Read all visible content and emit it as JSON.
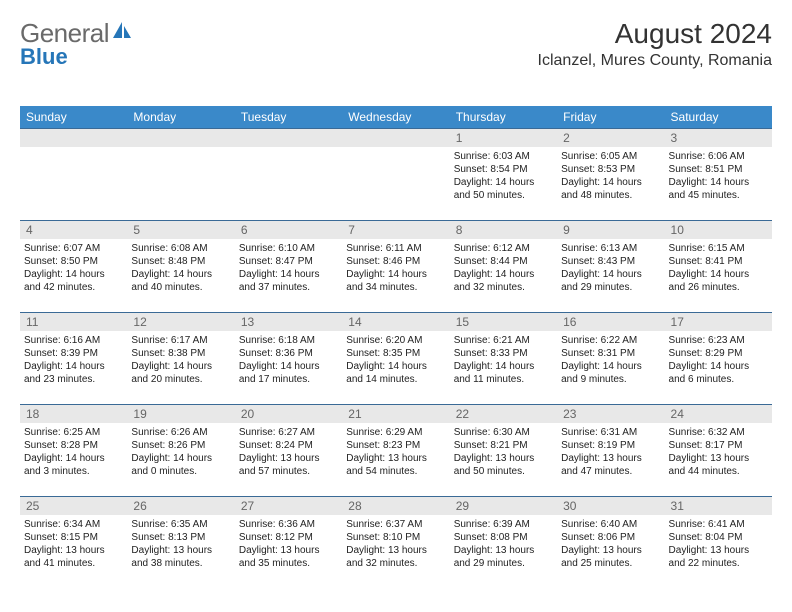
{
  "brand": {
    "general": "General",
    "blue": "Blue"
  },
  "title": "August 2024",
  "location": "Iclanzel, Mures County, Romania",
  "colors": {
    "header_blue": "#3a89c9",
    "border_blue": "#3a6a96",
    "daynum_bg": "#e8e8e8",
    "logo_blue": "#2676b8",
    "logo_gray": "#6a6a6a"
  },
  "day_headers": [
    "Sunday",
    "Monday",
    "Tuesday",
    "Wednesday",
    "Thursday",
    "Friday",
    "Saturday"
  ],
  "weeks": [
    [
      null,
      null,
      null,
      null,
      {
        "n": "1",
        "sr": "6:03 AM",
        "ss": "8:54 PM",
        "dl": "14 hours and 50 minutes."
      },
      {
        "n": "2",
        "sr": "6:05 AM",
        "ss": "8:53 PM",
        "dl": "14 hours and 48 minutes."
      },
      {
        "n": "3",
        "sr": "6:06 AM",
        "ss": "8:51 PM",
        "dl": "14 hours and 45 minutes."
      }
    ],
    [
      {
        "n": "4",
        "sr": "6:07 AM",
        "ss": "8:50 PM",
        "dl": "14 hours and 42 minutes."
      },
      {
        "n": "5",
        "sr": "6:08 AM",
        "ss": "8:48 PM",
        "dl": "14 hours and 40 minutes."
      },
      {
        "n": "6",
        "sr": "6:10 AM",
        "ss": "8:47 PM",
        "dl": "14 hours and 37 minutes."
      },
      {
        "n": "7",
        "sr": "6:11 AM",
        "ss": "8:46 PM",
        "dl": "14 hours and 34 minutes."
      },
      {
        "n": "8",
        "sr": "6:12 AM",
        "ss": "8:44 PM",
        "dl": "14 hours and 32 minutes."
      },
      {
        "n": "9",
        "sr": "6:13 AM",
        "ss": "8:43 PM",
        "dl": "14 hours and 29 minutes."
      },
      {
        "n": "10",
        "sr": "6:15 AM",
        "ss": "8:41 PM",
        "dl": "14 hours and 26 minutes."
      }
    ],
    [
      {
        "n": "11",
        "sr": "6:16 AM",
        "ss": "8:39 PM",
        "dl": "14 hours and 23 minutes."
      },
      {
        "n": "12",
        "sr": "6:17 AM",
        "ss": "8:38 PM",
        "dl": "14 hours and 20 minutes."
      },
      {
        "n": "13",
        "sr": "6:18 AM",
        "ss": "8:36 PM",
        "dl": "14 hours and 17 minutes."
      },
      {
        "n": "14",
        "sr": "6:20 AM",
        "ss": "8:35 PM",
        "dl": "14 hours and 14 minutes."
      },
      {
        "n": "15",
        "sr": "6:21 AM",
        "ss": "8:33 PM",
        "dl": "14 hours and 11 minutes."
      },
      {
        "n": "16",
        "sr": "6:22 AM",
        "ss": "8:31 PM",
        "dl": "14 hours and 9 minutes."
      },
      {
        "n": "17",
        "sr": "6:23 AM",
        "ss": "8:29 PM",
        "dl": "14 hours and 6 minutes."
      }
    ],
    [
      {
        "n": "18",
        "sr": "6:25 AM",
        "ss": "8:28 PM",
        "dl": "14 hours and 3 minutes."
      },
      {
        "n": "19",
        "sr": "6:26 AM",
        "ss": "8:26 PM",
        "dl": "14 hours and 0 minutes."
      },
      {
        "n": "20",
        "sr": "6:27 AM",
        "ss": "8:24 PM",
        "dl": "13 hours and 57 minutes."
      },
      {
        "n": "21",
        "sr": "6:29 AM",
        "ss": "8:23 PM",
        "dl": "13 hours and 54 minutes."
      },
      {
        "n": "22",
        "sr": "6:30 AM",
        "ss": "8:21 PM",
        "dl": "13 hours and 50 minutes."
      },
      {
        "n": "23",
        "sr": "6:31 AM",
        "ss": "8:19 PM",
        "dl": "13 hours and 47 minutes."
      },
      {
        "n": "24",
        "sr": "6:32 AM",
        "ss": "8:17 PM",
        "dl": "13 hours and 44 minutes."
      }
    ],
    [
      {
        "n": "25",
        "sr": "6:34 AM",
        "ss": "8:15 PM",
        "dl": "13 hours and 41 minutes."
      },
      {
        "n": "26",
        "sr": "6:35 AM",
        "ss": "8:13 PM",
        "dl": "13 hours and 38 minutes."
      },
      {
        "n": "27",
        "sr": "6:36 AM",
        "ss": "8:12 PM",
        "dl": "13 hours and 35 minutes."
      },
      {
        "n": "28",
        "sr": "6:37 AM",
        "ss": "8:10 PM",
        "dl": "13 hours and 32 minutes."
      },
      {
        "n": "29",
        "sr": "6:39 AM",
        "ss": "8:08 PM",
        "dl": "13 hours and 29 minutes."
      },
      {
        "n": "30",
        "sr": "6:40 AM",
        "ss": "8:06 PM",
        "dl": "13 hours and 25 minutes."
      },
      {
        "n": "31",
        "sr": "6:41 AM",
        "ss": "8:04 PM",
        "dl": "13 hours and 22 minutes."
      }
    ]
  ],
  "labels": {
    "sunrise": "Sunrise: ",
    "sunset": "Sunset: ",
    "daylight": "Daylight: "
  }
}
